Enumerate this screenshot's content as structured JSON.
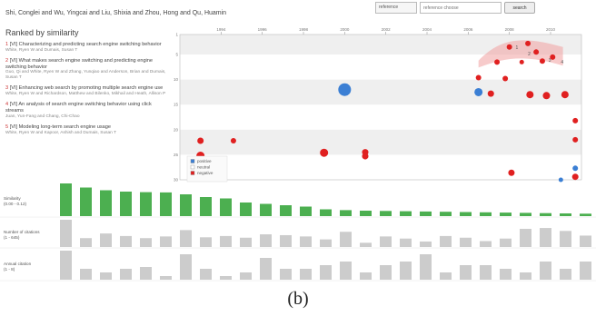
{
  "header": {
    "authors_line": "Shi, Conglei and Wu, Yingcai and Liu, Shixia and Zhou, Hong and Qu, Huamin",
    "search_scope": "reference",
    "search_placeholder": "reference choose",
    "search_button": "search"
  },
  "ranking": {
    "heading": "Ranked by similarity",
    "results": [
      {
        "num": "1",
        "title": "[VI] Characterizing and predicting search engine switching behavior",
        "authors": "White, Ryen W and Dumais, Susan T"
      },
      {
        "num": "2",
        "title": "[VI] What makes search engine switching and predicting engine switching behavior",
        "authors": "Guo, Qi and White, Ryen W and Zhang, Yunqiao and Anderson, Brian and Dumais, Susan T"
      },
      {
        "num": "3",
        "title": "[VI] Enhancing web search by promoting multiple search engine use",
        "authors": "White, Ryen W and Richardson, Matthew and Bilenko, Mikhail and Heath, Allison P"
      },
      {
        "num": "4",
        "title": "[VI] An analysis of search engine switching behavior using click streams",
        "authors": "Juan, Yun-Fang and Chang, Chi-Chao"
      },
      {
        "num": "5",
        "title": "[VI] Modeling long-term search engine usage",
        "authors": "White, Ryen W and Kapoor, Ashish and Dumais, Susan T"
      }
    ]
  },
  "timeline": {
    "years": [
      "1994",
      "1996",
      "1998",
      "2000",
      "2002",
      "2004",
      "2006",
      "2008",
      "2010"
    ],
    "ranks": [
      "1",
      "5",
      "10",
      "15",
      "20",
      "25",
      "30"
    ],
    "highlight_labels": [
      "1",
      "2",
      "3",
      "4"
    ],
    "legend": [
      {
        "label": "positive",
        "color": "#3b7fd4"
      },
      {
        "label": "neutral",
        "color": "#ffffff"
      },
      {
        "label": "negative",
        "color": "#e02020"
      }
    ],
    "bubbles": [
      {
        "year": 2007.4,
        "rank": 6.5,
        "size": 3,
        "cat": "negative"
      },
      {
        "year": 2008.6,
        "rank": 6.5,
        "size": 2.5,
        "cat": "negative"
      },
      {
        "year": 2008.0,
        "rank": 3.5,
        "size": 3,
        "cat": "negative"
      },
      {
        "year": 2008.9,
        "rank": 2.8,
        "size": 3,
        "cat": "negative"
      },
      {
        "year": 2009.3,
        "rank": 4.5,
        "size": 3,
        "cat": "negative"
      },
      {
        "year": 2009.6,
        "rank": 6.3,
        "size": 3,
        "cat": "negative"
      },
      {
        "year": 2010.1,
        "rank": 5.5,
        "size": 3,
        "cat": "negative"
      },
      {
        "year": 2006.5,
        "rank": 9.6,
        "size": 3,
        "cat": "negative"
      },
      {
        "year": 2007.8,
        "rank": 9.8,
        "size": 3,
        "cat": "negative"
      },
      {
        "year": 2000.0,
        "rank": 12.0,
        "size": 7,
        "cat": "positive"
      },
      {
        "year": 2006.5,
        "rank": 12.5,
        "size": 4.5,
        "cat": "positive"
      },
      {
        "year": 2007.1,
        "rank": 12.8,
        "size": 3.5,
        "cat": "negative"
      },
      {
        "year": 2009.0,
        "rank": 13.0,
        "size": 4,
        "cat": "negative"
      },
      {
        "year": 2009.8,
        "rank": 13.2,
        "size": 4,
        "cat": "negative"
      },
      {
        "year": 2010.7,
        "rank": 13.0,
        "size": 4,
        "cat": "negative"
      },
      {
        "year": 2011.2,
        "rank": 18.2,
        "size": 3,
        "cat": "negative"
      },
      {
        "year": 2011.2,
        "rank": 22.0,
        "size": 3,
        "cat": "negative"
      },
      {
        "year": 1993.0,
        "rank": 22.2,
        "size": 3.5,
        "cat": "negative"
      },
      {
        "year": 1994.6,
        "rank": 22.2,
        "size": 3,
        "cat": "negative"
      },
      {
        "year": 1993.0,
        "rank": 25.2,
        "size": 4.5,
        "cat": "negative"
      },
      {
        "year": 1999.0,
        "rank": 24.6,
        "size": 4.5,
        "cat": "negative"
      },
      {
        "year": 2001.0,
        "rank": 24.5,
        "size": 3.5,
        "cat": "negative"
      },
      {
        "year": 2001.0,
        "rank": 25.3,
        "size": 3.5,
        "cat": "negative"
      },
      {
        "year": 2008.1,
        "rank": 28.6,
        "size": 3.5,
        "cat": "negative"
      },
      {
        "year": 2011.2,
        "rank": 27.7,
        "size": 3,
        "cat": "positive"
      },
      {
        "year": 2011.2,
        "rank": 29.4,
        "size": 3.5,
        "cat": "negative"
      },
      {
        "year": 2010.5,
        "rank": 30.0,
        "size": 2.5,
        "cat": "positive"
      }
    ]
  },
  "bars": {
    "rows": [
      {
        "label": "Similarity",
        "range": "(0.00 - 0.12)",
        "color": "#4caf50",
        "values": [
          0.12,
          0.105,
          0.095,
          0.09,
          0.088,
          0.087,
          0.08,
          0.07,
          0.065,
          0.05,
          0.045,
          0.04,
          0.035,
          0.025,
          0.022,
          0.02,
          0.019,
          0.018,
          0.017,
          0.016,
          0.015,
          0.014,
          0.013,
          0.012,
          0.011,
          0.01,
          0.009
        ]
      },
      {
        "label": "Number of citations",
        "range": "(1 - 645)",
        "color": "#cccccc",
        "values": [
          645,
          210,
          320,
          260,
          210,
          250,
          400,
          230,
          260,
          220,
          300,
          280,
          250,
          180,
          360,
          100,
          250,
          200,
          130,
          260,
          220,
          140,
          200,
          430,
          450,
          380,
          270
        ]
      },
      {
        "label": "Annual citation",
        "range": "(1 - 8)",
        "color": "#cccccc",
        "values": [
          8,
          3,
          2,
          3,
          3.5,
          1,
          7,
          3,
          1,
          2,
          6,
          3,
          3,
          4,
          5,
          2,
          4,
          5,
          7,
          2,
          4,
          4,
          3,
          2,
          5,
          3,
          5
        ]
      }
    ]
  },
  "caption": "(b)"
}
